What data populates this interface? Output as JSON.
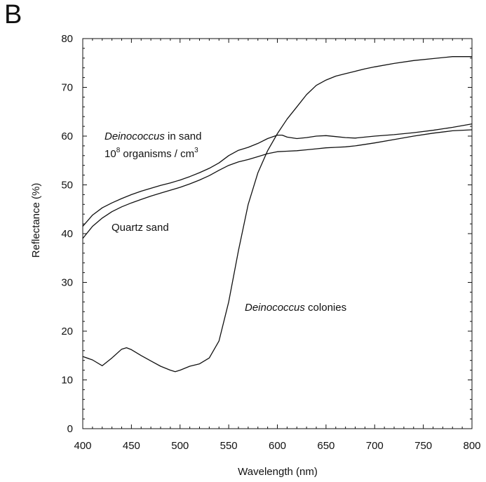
{
  "panel_label": "B",
  "chart_data": {
    "type": "line",
    "title": "",
    "xlabel": "Wavelength (nm)",
    "ylabel": "Reflectance (%)",
    "xlim": [
      400,
      800
    ],
    "ylim": [
      0,
      80
    ],
    "xticks": [
      400,
      450,
      500,
      550,
      600,
      650,
      700,
      750,
      800
    ],
    "yticks": [
      0,
      10,
      20,
      30,
      40,
      50,
      60,
      70,
      80
    ],
    "grid": false,
    "legend": "none",
    "line_color": "#111111",
    "series": [
      {
        "name": "Deinococcus in sand 10^8 organisms / cm^3",
        "points": [
          [
            400,
            41.5
          ],
          [
            410,
            43.8
          ],
          [
            420,
            45.3
          ],
          [
            430,
            46.3
          ],
          [
            440,
            47.2
          ],
          [
            450,
            48.0
          ],
          [
            460,
            48.7
          ],
          [
            470,
            49.3
          ],
          [
            480,
            49.9
          ],
          [
            490,
            50.4
          ],
          [
            500,
            51.0
          ],
          [
            510,
            51.7
          ],
          [
            520,
            52.5
          ],
          [
            530,
            53.4
          ],
          [
            540,
            54.5
          ],
          [
            550,
            56.0
          ],
          [
            560,
            57.1
          ],
          [
            570,
            57.7
          ],
          [
            580,
            58.5
          ],
          [
            590,
            59.5
          ],
          [
            600,
            60.2
          ],
          [
            605,
            60.2
          ],
          [
            610,
            59.8
          ],
          [
            620,
            59.5
          ],
          [
            630,
            59.7
          ],
          [
            640,
            60.0
          ],
          [
            650,
            60.1
          ],
          [
            660,
            59.9
          ],
          [
            670,
            59.7
          ],
          [
            680,
            59.6
          ],
          [
            690,
            59.8
          ],
          [
            700,
            60.0
          ],
          [
            720,
            60.3
          ],
          [
            740,
            60.7
          ],
          [
            760,
            61.2
          ],
          [
            780,
            61.8
          ],
          [
            800,
            62.5
          ]
        ]
      },
      {
        "name": "Quartz sand",
        "points": [
          [
            400,
            39.0
          ],
          [
            410,
            41.5
          ],
          [
            420,
            43.2
          ],
          [
            430,
            44.5
          ],
          [
            440,
            45.5
          ],
          [
            450,
            46.3
          ],
          [
            460,
            47.0
          ],
          [
            470,
            47.7
          ],
          [
            480,
            48.3
          ],
          [
            490,
            48.9
          ],
          [
            500,
            49.5
          ],
          [
            510,
            50.2
          ],
          [
            520,
            51.0
          ],
          [
            530,
            51.9
          ],
          [
            540,
            53.0
          ],
          [
            550,
            54.0
          ],
          [
            560,
            54.7
          ],
          [
            570,
            55.2
          ],
          [
            580,
            55.8
          ],
          [
            590,
            56.4
          ],
          [
            600,
            56.8
          ],
          [
            610,
            56.9
          ],
          [
            620,
            57.0
          ],
          [
            630,
            57.2
          ],
          [
            640,
            57.4
          ],
          [
            650,
            57.6
          ],
          [
            660,
            57.7
          ],
          [
            670,
            57.8
          ],
          [
            680,
            58.0
          ],
          [
            690,
            58.3
          ],
          [
            700,
            58.6
          ],
          [
            720,
            59.3
          ],
          [
            740,
            60.0
          ],
          [
            760,
            60.6
          ],
          [
            780,
            61.1
          ],
          [
            800,
            61.3
          ]
        ]
      },
      {
        "name": "Deinococcus colonies",
        "points": [
          [
            400,
            14.8
          ],
          [
            410,
            14.1
          ],
          [
            420,
            12.9
          ],
          [
            430,
            14.5
          ],
          [
            440,
            16.3
          ],
          [
            445,
            16.6
          ],
          [
            450,
            16.2
          ],
          [
            460,
            15.0
          ],
          [
            470,
            13.9
          ],
          [
            480,
            12.8
          ],
          [
            490,
            12.0
          ],
          [
            495,
            11.7
          ],
          [
            500,
            12.0
          ],
          [
            510,
            12.8
          ],
          [
            520,
            13.3
          ],
          [
            530,
            14.5
          ],
          [
            540,
            18.0
          ],
          [
            550,
            26.0
          ],
          [
            560,
            36.5
          ],
          [
            570,
            46.0
          ],
          [
            580,
            52.5
          ],
          [
            590,
            57.0
          ],
          [
            600,
            60.5
          ],
          [
            610,
            63.5
          ],
          [
            620,
            66.0
          ],
          [
            630,
            68.5
          ],
          [
            640,
            70.4
          ],
          [
            650,
            71.5
          ],
          [
            660,
            72.3
          ],
          [
            670,
            72.8
          ],
          [
            680,
            73.3
          ],
          [
            690,
            73.8
          ],
          [
            700,
            74.2
          ],
          [
            720,
            74.9
          ],
          [
            740,
            75.5
          ],
          [
            760,
            75.9
          ],
          [
            780,
            76.3
          ],
          [
            800,
            76.3
          ]
        ]
      }
    ],
    "annotations": [
      {
        "id": "in-sand-line1-italic",
        "text": "Deinococcus"
      },
      {
        "id": "in-sand-line1-rest",
        "text": " in sand"
      },
      {
        "id": "in-sand-line2-base",
        "text": "10"
      },
      {
        "id": "in-sand-line2-sup1",
        "text": "8"
      },
      {
        "id": "in-sand-line2-mid",
        "text": " organisms / cm"
      },
      {
        "id": "in-sand-line2-sup2",
        "text": "3"
      },
      {
        "id": "quartz",
        "text": "Quartz sand"
      },
      {
        "id": "colonies-italic",
        "text": "Deinococcus"
      },
      {
        "id": "colonies-rest",
        "text": " colonies"
      }
    ]
  }
}
